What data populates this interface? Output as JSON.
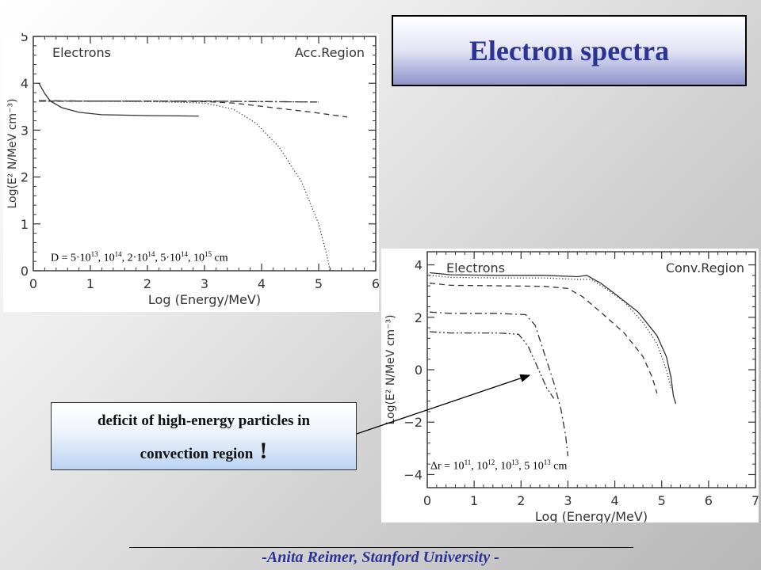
{
  "slide": {
    "title": "Electron spectra",
    "callout_line1": "deficit of high-energy particles in",
    "callout_line2": "convection region",
    "callout_exclaim": "!",
    "footer": "-Anita Reimer, Stanford University -"
  },
  "colors": {
    "title": "#2b3494",
    "footer": "#2b3494",
    "plot_line": "#333333"
  },
  "chart_data": [
    {
      "type": "line",
      "title": "",
      "label_left": "Electrons",
      "label_right": "Acc.Region",
      "xlabel": "Log (Energy/MeV)",
      "ylabel": "Log(E² N/MeV cm⁻³)",
      "xlim": [
        0,
        6
      ],
      "ylim": [
        0,
        5
      ],
      "xticks": [
        0,
        1,
        2,
        3,
        4,
        5,
        6
      ],
      "yticks": [
        0,
        1,
        2,
        3,
        4,
        5
      ],
      "caption": {
        "parts": [
          [
            "D = 5·10",
            "13"
          ],
          [
            ", 10",
            "14"
          ],
          [
            ", 2·10",
            "14"
          ],
          [
            ", 5·10",
            "14"
          ],
          [
            ", 10",
            "15"
          ],
          [
            " cm",
            ""
          ]
        ]
      },
      "series": [
        {
          "style": "solid",
          "points": [
            [
              0.1,
              4.0
            ],
            [
              0.2,
              3.78
            ],
            [
              0.3,
              3.62
            ],
            [
              0.5,
              3.48
            ],
            [
              0.8,
              3.38
            ],
            [
              1.2,
              3.33
            ],
            [
              2.0,
              3.31
            ],
            [
              2.9,
              3.3
            ]
          ]
        },
        {
          "style": "dotted",
          "points": [
            [
              0.1,
              3.62
            ],
            [
              1.0,
              3.62
            ],
            [
              2.0,
              3.61
            ],
            [
              3.0,
              3.58
            ],
            [
              3.5,
              3.45
            ],
            [
              3.9,
              3.15
            ],
            [
              4.3,
              2.65
            ],
            [
              4.7,
              1.9
            ],
            [
              5.0,
              1.0
            ],
            [
              5.15,
              0.3
            ],
            [
              5.2,
              0.0
            ]
          ]
        },
        {
          "style": "dashed",
          "points": [
            [
              0.1,
              3.62
            ],
            [
              1.0,
              3.62
            ],
            [
              2.0,
              3.62
            ],
            [
              3.0,
              3.61
            ],
            [
              3.5,
              3.58
            ],
            [
              4.2,
              3.48
            ],
            [
              4.9,
              3.38
            ],
            [
              5.5,
              3.28
            ]
          ]
        },
        {
          "style": "dashdot",
          "points": [
            [
              0.1,
              3.63
            ],
            [
              1.0,
              3.62
            ],
            [
              2.0,
              3.62
            ],
            [
              3.0,
              3.62
            ],
            [
              4.0,
              3.61
            ],
            [
              5.0,
              3.6
            ]
          ]
        },
        {
          "style": "dashdotdot",
          "points": [
            [
              0.1,
              3.62
            ],
            [
              1.0,
              3.62
            ],
            [
              2.0,
              3.62
            ],
            [
              3.0,
              3.62
            ],
            [
              4.0,
              3.61
            ],
            [
              5.0,
              3.6
            ]
          ]
        }
      ]
    },
    {
      "type": "line",
      "title": "",
      "label_left": "Electrons",
      "label_right": "Conv.Region",
      "xlabel": "Log (Energy/MeV)",
      "ylabel": "Log(E² N/MeV cm⁻³)",
      "xlim": [
        0,
        7
      ],
      "ylim": [
        -4.5,
        4.5
      ],
      "xticks": [
        0,
        1,
        2,
        3,
        4,
        5,
        6,
        7
      ],
      "yticks": [
        -4,
        -2,
        0,
        2,
        4
      ],
      "caption": {
        "parts": [
          [
            "Δr = 10",
            "11"
          ],
          [
            ", 10",
            "12"
          ],
          [
            ", 10",
            "13"
          ],
          [
            ", 5 10",
            "13"
          ],
          [
            " cm",
            ""
          ]
        ]
      },
      "series": [
        {
          "style": "solid",
          "points": [
            [
              0.05,
              3.7
            ],
            [
              0.5,
              3.62
            ],
            [
              1.5,
              3.6
            ],
            [
              2.5,
              3.6
            ],
            [
              3.2,
              3.55
            ],
            [
              3.4,
              3.6
            ],
            [
              3.7,
              3.3
            ],
            [
              4.0,
              2.9
            ],
            [
              4.5,
              2.2
            ],
            [
              4.9,
              1.3
            ],
            [
              5.1,
              0.5
            ],
            [
              5.2,
              -0.3
            ],
            [
              5.25,
              -1.0
            ],
            [
              5.3,
              -1.3
            ]
          ]
        },
        {
          "style": "dotted",
          "points": [
            [
              0.05,
              3.6
            ],
            [
              0.5,
              3.52
            ],
            [
              1.5,
              3.5
            ],
            [
              2.5,
              3.5
            ],
            [
              3.2,
              3.45
            ],
            [
              3.5,
              3.45
            ],
            [
              3.8,
              3.1
            ],
            [
              4.2,
              2.6
            ],
            [
              4.6,
              1.8
            ],
            [
              4.9,
              1.0
            ],
            [
              5.1,
              0.0
            ],
            [
              5.2,
              -0.7
            ]
          ]
        },
        {
          "style": "dashed",
          "points": [
            [
              0.05,
              3.3
            ],
            [
              0.5,
              3.22
            ],
            [
              1.5,
              3.2
            ],
            [
              2.5,
              3.18
            ],
            [
              3.0,
              3.1
            ],
            [
              3.3,
              2.8
            ],
            [
              3.7,
              2.2
            ],
            [
              4.2,
              1.4
            ],
            [
              4.6,
              0.5
            ],
            [
              4.8,
              -0.3
            ],
            [
              4.9,
              -0.9
            ]
          ]
        },
        {
          "style": "dashdot",
          "points": [
            [
              0.05,
              2.2
            ],
            [
              0.5,
              2.15
            ],
            [
              1.5,
              2.15
            ],
            [
              2.1,
              2.1
            ],
            [
              2.3,
              1.7
            ],
            [
              2.5,
              0.6
            ],
            [
              2.7,
              -0.5
            ],
            [
              2.85,
              -1.5
            ],
            [
              2.95,
              -2.5
            ],
            [
              3.0,
              -3.3
            ]
          ]
        },
        {
          "style": "dashdotdot",
          "points": [
            [
              0.05,
              1.45
            ],
            [
              0.5,
              1.4
            ],
            [
              1.5,
              1.4
            ],
            [
              1.95,
              1.35
            ],
            [
              2.15,
              0.9
            ],
            [
              2.35,
              0.1
            ],
            [
              2.55,
              -0.7
            ],
            [
              2.7,
              -1.1
            ]
          ]
        }
      ]
    }
  ]
}
